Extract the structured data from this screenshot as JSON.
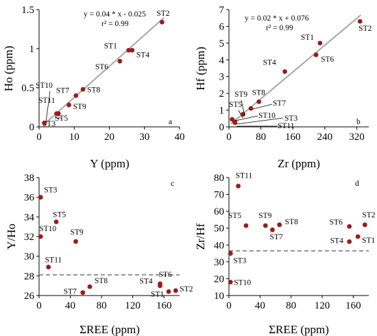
{
  "chart_data": [
    {
      "id": "a",
      "type": "scatter",
      "panel_label": "a",
      "xlabel": "Y (ppm)",
      "ylabel": "Ho (ppm)",
      "xlim": [
        0,
        40
      ],
      "ylim": [
        0,
        1.5
      ],
      "xticks": [
        "0",
        "10",
        "20",
        "30",
        "40"
      ],
      "yticks": [
        "0",
        "0.5",
        "1",
        "1.5"
      ],
      "equation": "y = 0.04 * x - 0.025",
      "r2": "r² = 0.99",
      "fit": {
        "slope": 0.04,
        "intercept": -0.025,
        "x_range": [
          1.5,
          35.5
        ]
      },
      "colors": {
        "point": "#9b1c1c",
        "fit": "#a6a6a6"
      },
      "points": [
        {
          "name": "ST1",
          "x": 25.5,
          "y": 0.98
        },
        {
          "name": "ST2",
          "x": 35.0,
          "y": 1.34
        },
        {
          "name": "ST3",
          "x": 1.5,
          "y": 0.05
        },
        {
          "name": "ST4",
          "x": 26.5,
          "y": 0.98
        },
        {
          "name": "ST5",
          "x": 5.5,
          "y": 0.17
        },
        {
          "name": "ST6",
          "x": 23.0,
          "y": 0.84
        },
        {
          "name": "ST7",
          "x": 10.5,
          "y": 0.4
        },
        {
          "name": "ST8",
          "x": 12.5,
          "y": 0.48
        },
        {
          "name": "ST9",
          "x": 8.5,
          "y": 0.28
        },
        {
          "name": "ST10",
          "x": 1.5,
          "y": 0.05
        },
        {
          "name": "ST11",
          "x": 5.0,
          "y": 0.17
        }
      ]
    },
    {
      "id": "b",
      "type": "scatter",
      "panel_label": "b",
      "xlabel": "Zr (ppm)",
      "ylabel": "Hf (ppm)",
      "xlim": [
        0,
        350
      ],
      "ylim": [
        0,
        7
      ],
      "xticks": [
        "0",
        "80",
        "160",
        "240",
        "320"
      ],
      "xtick_values": [
        0,
        80,
        160,
        240,
        320
      ],
      "yticks": [
        "0",
        "1",
        "2",
        "3",
        "4",
        "5",
        "6",
        "7"
      ],
      "equation": "y = 0.02 * x + 0.076",
      "r2": "r² = 0.99",
      "fit": {
        "slope": 0.02,
        "intercept": 0.076,
        "x_range": [
          5,
          330
        ]
      },
      "colors": {
        "point": "#9b1c1c",
        "fit": "#a6a6a6"
      },
      "points": [
        {
          "name": "ST1",
          "x": 228,
          "y": 5.0
        },
        {
          "name": "ST2",
          "x": 328,
          "y": 6.3
        },
        {
          "name": "ST3",
          "x": 15,
          "y": 0.3
        },
        {
          "name": "ST4",
          "x": 140,
          "y": 3.3
        },
        {
          "name": "ST5",
          "x": 35,
          "y": 0.75
        },
        {
          "name": "ST6",
          "x": 218,
          "y": 4.3
        },
        {
          "name": "ST7",
          "x": 55,
          "y": 1.1
        },
        {
          "name": "ST8",
          "x": 75,
          "y": 1.5
        },
        {
          "name": "ST9",
          "x": 35,
          "y": 0.75
        },
        {
          "name": "ST10",
          "x": 8,
          "y": 0.45
        },
        {
          "name": "ST11",
          "x": 15,
          "y": 0.25
        }
      ]
    },
    {
      "id": "c",
      "type": "scatter",
      "panel_label": "c",
      "xlabel": "ΣREE (ppm)",
      "ylabel": "Y/Ho",
      "xlim": [
        0,
        180
      ],
      "ylim": [
        26,
        38
      ],
      "xticks": [
        "0",
        "40",
        "80",
        "120",
        "160"
      ],
      "xtick_values": [
        0,
        40,
        80,
        120,
        160
      ],
      "yticks": [
        "26",
        "28",
        "30",
        "32",
        "34",
        "36",
        "38"
      ],
      "reference_line": 28.1,
      "colors": {
        "point": "#9b1c1c",
        "reference": "#595959"
      },
      "points": [
        {
          "name": "ST1",
          "x": 166,
          "y": 26.4
        },
        {
          "name": "ST2",
          "x": 175,
          "y": 26.5
        },
        {
          "name": "ST3",
          "x": 2,
          "y": 36.0
        },
        {
          "name": "ST4",
          "x": 155,
          "y": 27.0
        },
        {
          "name": "ST5",
          "x": 22,
          "y": 33.5
        },
        {
          "name": "ST6",
          "x": 155,
          "y": 27.2
        },
        {
          "name": "ST7",
          "x": 56,
          "y": 26.3
        },
        {
          "name": "ST8",
          "x": 65,
          "y": 26.9
        },
        {
          "name": "ST9",
          "x": 47,
          "y": 31.5
        },
        {
          "name": "ST10",
          "x": 2,
          "y": 32.0
        },
        {
          "name": "ST11",
          "x": 12,
          "y": 28.9
        }
      ]
    },
    {
      "id": "d",
      "type": "scatter",
      "panel_label": "d",
      "xlabel": "ΣREE (ppm)",
      "ylabel": "Zr/Hf",
      "xlim": [
        0,
        180
      ],
      "ylim": [
        10,
        80
      ],
      "xticks": [
        "0",
        "40",
        "80",
        "120",
        "160"
      ],
      "xtick_values": [
        0,
        40,
        80,
        120,
        160
      ],
      "yticks": [
        "10",
        "20",
        "30",
        "40",
        "50",
        "60",
        "70",
        "80"
      ],
      "reference_line": 36.5,
      "colors": {
        "point": "#9b1c1c",
        "reference": "#595959"
      },
      "points": [
        {
          "name": "ST1",
          "x": 166,
          "y": 45
        },
        {
          "name": "ST2",
          "x": 175,
          "y": 52
        },
        {
          "name": "ST3",
          "x": 2,
          "y": 35
        },
        {
          "name": "ST4",
          "x": 155,
          "y": 42
        },
        {
          "name": "ST5",
          "x": 22,
          "y": 51.5
        },
        {
          "name": "ST6",
          "x": 155,
          "y": 51
        },
        {
          "name": "ST7",
          "x": 56,
          "y": 49
        },
        {
          "name": "ST8",
          "x": 65,
          "y": 52
        },
        {
          "name": "ST9",
          "x": 47,
          "y": 51.5
        },
        {
          "name": "ST10",
          "x": 2,
          "y": 18
        },
        {
          "name": "ST11",
          "x": 12,
          "y": 75
        }
      ]
    }
  ]
}
